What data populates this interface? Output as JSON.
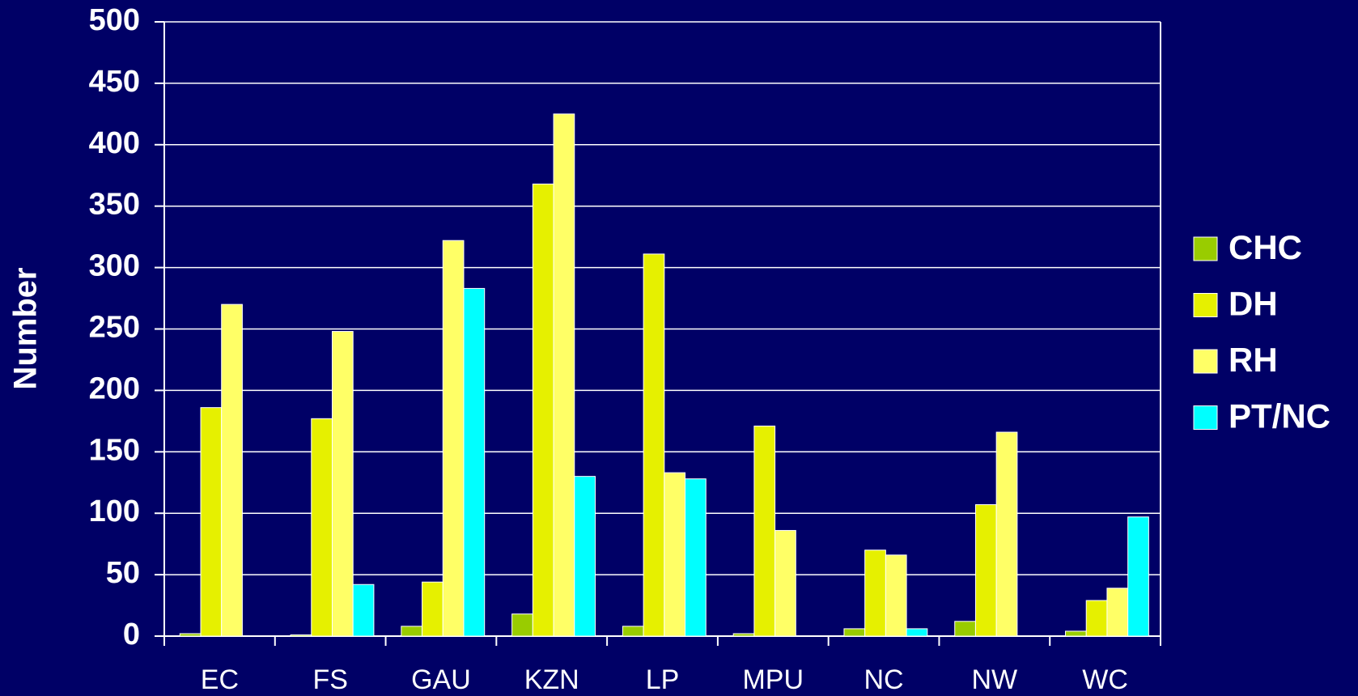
{
  "chart_data": {
    "type": "bar",
    "y_label": "Number",
    "categories": [
      "EC",
      "FS",
      "GAU",
      "KZN",
      "LP",
      "MPU",
      "NC",
      "NW",
      "WC"
    ],
    "series": [
      {
        "name": "CHC",
        "color": "#99cc00",
        "values": [
          2,
          1,
          8,
          18,
          8,
          2,
          6,
          12,
          4
        ]
      },
      {
        "name": "DH",
        "color": "#e6f000",
        "values": [
          186,
          177,
          44,
          368,
          311,
          171,
          70,
          107,
          29
        ]
      },
      {
        "name": "RH",
        "color": "#ffff66",
        "values": [
          270,
          248,
          322,
          425,
          133,
          86,
          66,
          166,
          39
        ]
      },
      {
        "name": "PT/NC",
        "color": "#00ffff",
        "values": [
          0,
          42,
          283,
          130,
          128,
          0,
          6,
          0,
          97
        ]
      }
    ],
    "ylim": [
      0,
      500
    ],
    "yticks": [
      0,
      50,
      100,
      150,
      200,
      250,
      300,
      350,
      400,
      450,
      500
    ],
    "grid": true,
    "legend": "right"
  }
}
